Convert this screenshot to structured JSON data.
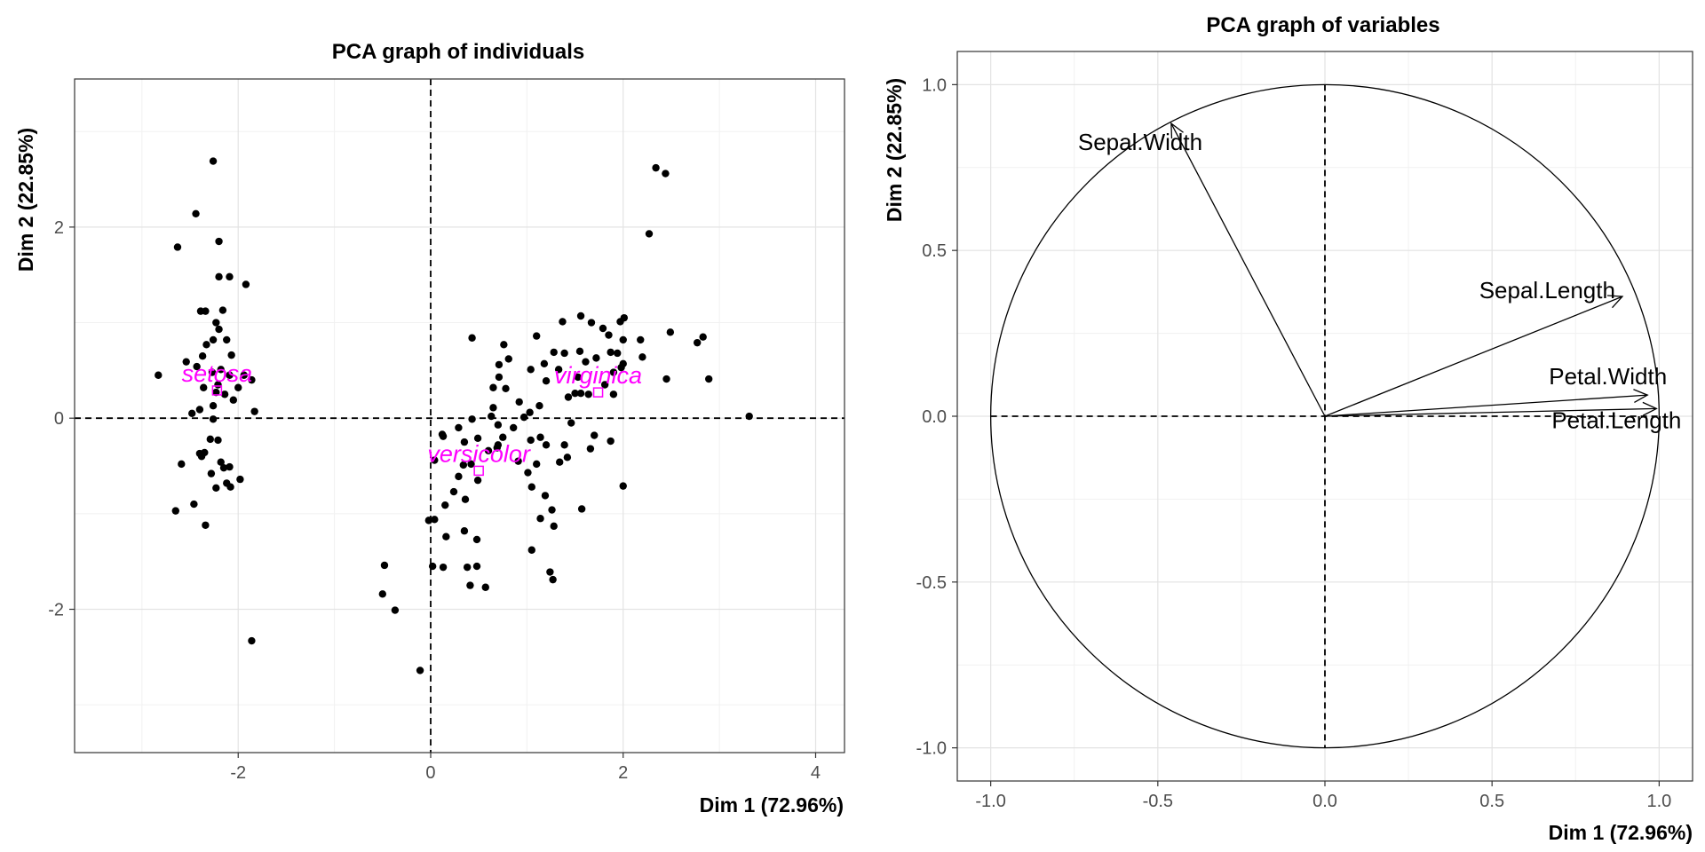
{
  "chart_data": [
    {
      "type": "scatter",
      "title": "PCA graph of individuals",
      "xlabel": "Dim 1 (72.96%)",
      "ylabel": "Dim 2 (22.85%)",
      "xlim": [
        -3.7,
        4.3
      ],
      "ylim": [
        -3.5,
        3.55
      ],
      "x_ticks": [
        -2,
        0,
        2,
        4
      ],
      "y_ticks": [
        -2,
        0,
        2
      ],
      "grid": true,
      "point_color": "#000000",
      "group_color": "#ff00ff",
      "points": [
        [
          -2.26,
          2.69
        ],
        [
          -2.44,
          2.14
        ],
        [
          -2.63,
          1.79
        ],
        [
          -2.2,
          1.85
        ],
        [
          -2.2,
          1.48
        ],
        [
          -2.09,
          1.48
        ],
        [
          -2.39,
          1.12
        ],
        [
          -2.34,
          1.12
        ],
        [
          -2.16,
          1.13
        ],
        [
          -2.23,
          1.0
        ],
        [
          -2.2,
          0.93
        ],
        [
          -2.12,
          0.82
        ],
        [
          -2.26,
          0.82
        ],
        [
          -2.33,
          0.77
        ],
        [
          -1.92,
          1.4
        ],
        [
          -2.07,
          0.66
        ],
        [
          -2.37,
          0.65
        ],
        [
          -2.54,
          0.59
        ],
        [
          -2.43,
          0.54
        ],
        [
          -2.27,
          0.48
        ],
        [
          -2.18,
          0.51
        ],
        [
          -2.09,
          0.45
        ],
        [
          -1.94,
          0.45
        ],
        [
          -2.83,
          0.45
        ],
        [
          -1.86,
          0.4
        ],
        [
          -2.21,
          0.35
        ],
        [
          -2.0,
          0.32
        ],
        [
          -2.36,
          0.32
        ],
        [
          -2.23,
          0.27
        ],
        [
          -2.14,
          0.25
        ],
        [
          -2.26,
          0.13
        ],
        [
          -2.05,
          0.19
        ],
        [
          -2.48,
          0.05
        ],
        [
          -2.4,
          0.09
        ],
        [
          -1.83,
          0.07
        ],
        [
          -2.26,
          -0.01
        ],
        [
          -2.29,
          -0.22
        ],
        [
          -2.21,
          -0.23
        ],
        [
          -2.35,
          -0.36
        ],
        [
          -2.4,
          -0.37
        ],
        [
          -2.38,
          -0.4
        ],
        [
          -2.59,
          -0.48
        ],
        [
          -2.18,
          -0.46
        ],
        [
          -2.15,
          -0.52
        ],
        [
          -2.09,
          -0.51
        ],
        [
          -2.12,
          -0.68
        ],
        [
          -1.98,
          -0.64
        ],
        [
          -2.28,
          -0.58
        ],
        [
          -2.08,
          -0.72
        ],
        [
          -2.23,
          -0.73
        ],
        [
          -2.46,
          -0.9
        ],
        [
          -2.65,
          -0.97
        ],
        [
          -2.34,
          -1.12
        ],
        [
          -1.86,
          -2.33
        ],
        [
          2.34,
          2.62
        ],
        [
          2.44,
          2.56
        ],
        [
          2.27,
          1.93
        ],
        [
          0.43,
          0.84
        ],
        [
          0.76,
          0.77
        ],
        [
          1.1,
          0.86
        ],
        [
          1.37,
          1.01
        ],
        [
          1.56,
          1.07
        ],
        [
          1.67,
          1.0
        ],
        [
          1.79,
          0.94
        ],
        [
          1.97,
          1.01
        ],
        [
          2.01,
          1.05
        ],
        [
          1.85,
          0.87
        ],
        [
          2.0,
          0.82
        ],
        [
          2.18,
          0.82
        ],
        [
          2.83,
          0.85
        ],
        [
          2.77,
          0.79
        ],
        [
          2.49,
          0.9
        ],
        [
          2.2,
          0.64
        ],
        [
          2.89,
          0.41
        ],
        [
          2.45,
          0.41
        ],
        [
          1.94,
          0.68
        ],
        [
          1.87,
          0.69
        ],
        [
          1.72,
          0.63
        ],
        [
          1.55,
          0.7
        ],
        [
          1.39,
          0.68
        ],
        [
          1.28,
          0.69
        ],
        [
          0.81,
          0.62
        ],
        [
          0.71,
          0.56
        ],
        [
          0.71,
          0.43
        ],
        [
          1.04,
          0.51
        ],
        [
          1.18,
          0.57
        ],
        [
          1.33,
          0.51
        ],
        [
          0.65,
          0.32
        ],
        [
          0.78,
          0.31
        ],
        [
          0.92,
          0.17
        ],
        [
          1.2,
          0.39
        ],
        [
          1.53,
          0.43
        ],
        [
          1.61,
          0.59
        ],
        [
          2.0,
          0.57
        ],
        [
          1.9,
          0.48
        ],
        [
          1.81,
          0.35
        ],
        [
          1.98,
          0.53
        ],
        [
          1.43,
          0.22
        ],
        [
          1.5,
          0.26
        ],
        [
          1.56,
          0.26
        ],
        [
          1.64,
          0.25
        ],
        [
          1.9,
          0.25
        ],
        [
          1.13,
          0.13
        ],
        [
          0.65,
          0.11
        ],
        [
          0.63,
          0.02
        ],
        [
          0.43,
          -0.01
        ],
        [
          0.29,
          -0.1
        ],
        [
          0.7,
          -0.07
        ],
        [
          0.75,
          -0.2
        ],
        [
          0.86,
          -0.1
        ],
        [
          0.97,
          0.01
        ],
        [
          1.03,
          0.06
        ],
        [
          1.46,
          -0.05
        ],
        [
          1.14,
          -0.2
        ],
        [
          1.04,
          -0.23
        ],
        [
          0.7,
          -0.28
        ],
        [
          0.49,
          -0.21
        ],
        [
          0.35,
          -0.25
        ],
        [
          0.13,
          -0.19
        ],
        [
          0.12,
          -0.17
        ],
        [
          1.2,
          -0.28
        ],
        [
          1.39,
          -0.28
        ],
        [
          1.7,
          -0.18
        ],
        [
          1.42,
          -0.41
        ],
        [
          1.34,
          -0.46
        ],
        [
          1.66,
          -0.32
        ],
        [
          1.87,
          -0.24
        ],
        [
          1.1,
          -0.48
        ],
        [
          1.01,
          -0.57
        ],
        [
          0.91,
          -0.45
        ],
        [
          0.69,
          -0.31
        ],
        [
          0.6,
          -0.34
        ],
        [
          0.42,
          -0.48
        ],
        [
          0.34,
          -0.49
        ],
        [
          0.29,
          -0.61
        ],
        [
          0.49,
          -0.65
        ],
        [
          0.24,
          -0.77
        ],
        [
          0.36,
          -0.85
        ],
        [
          0.15,
          -0.91
        ],
        [
          1.05,
          -0.72
        ],
        [
          1.19,
          -0.81
        ],
        [
          1.26,
          -0.96
        ],
        [
          1.57,
          -0.95
        ],
        [
          2.0,
          -0.71
        ],
        [
          1.14,
          -1.05
        ],
        [
          1.28,
          -1.13
        ],
        [
          0.04,
          -0.44
        ],
        [
          0.04,
          -1.06
        ],
        [
          -0.02,
          -1.07
        ],
        [
          0.16,
          -1.24
        ],
        [
          0.35,
          -1.18
        ],
        [
          0.48,
          -1.27
        ],
        [
          0.48,
          -1.55
        ],
        [
          0.02,
          -1.55
        ],
        [
          0.13,
          -1.56
        ],
        [
          0.38,
          -1.56
        ],
        [
          0.41,
          -1.75
        ],
        [
          0.57,
          -1.77
        ],
        [
          1.05,
          -1.38
        ],
        [
          1.24,
          -1.61
        ],
        [
          1.27,
          -1.69
        ],
        [
          -0.48,
          -1.54
        ],
        [
          -0.5,
          -1.84
        ],
        [
          -0.37,
          -2.01
        ],
        [
          -0.11,
          -2.64
        ],
        [
          3.31,
          0.02
        ]
      ],
      "groups": [
        {
          "name": "setosa",
          "x": -2.22,
          "y": 0.29
        },
        {
          "name": "virginica",
          "x": 1.74,
          "y": 0.27
        },
        {
          "name": "versicolor",
          "x": 0.5,
          "y": -0.55
        }
      ]
    },
    {
      "type": "vector",
      "title": "PCA graph of variables",
      "xlabel": "Dim 1 (72.96%)",
      "ylabel": "Dim 2 (22.85%)",
      "xlim": [
        -1.1,
        1.1
      ],
      "ylim": [
        -1.1,
        1.1
      ],
      "x_ticks": [
        -1.0,
        -0.5,
        0.0,
        0.5,
        1.0
      ],
      "y_ticks": [
        -1.0,
        -0.5,
        0.0,
        0.5,
        1.0
      ],
      "tick_labels": [
        "-1.0",
        "-0.5",
        "0.0",
        "0.5",
        "1.0"
      ],
      "grid": true,
      "circle_radius": 1.0,
      "variables": [
        {
          "name": "Sepal.Length",
          "x": 0.89,
          "y": 0.361
        },
        {
          "name": "Sepal.Width",
          "x": -0.46,
          "y": 0.883
        },
        {
          "name": "Petal.Length",
          "x": 0.992,
          "y": 0.023
        },
        {
          "name": "Petal.Width",
          "x": 0.965,
          "y": 0.064
        }
      ]
    }
  ]
}
